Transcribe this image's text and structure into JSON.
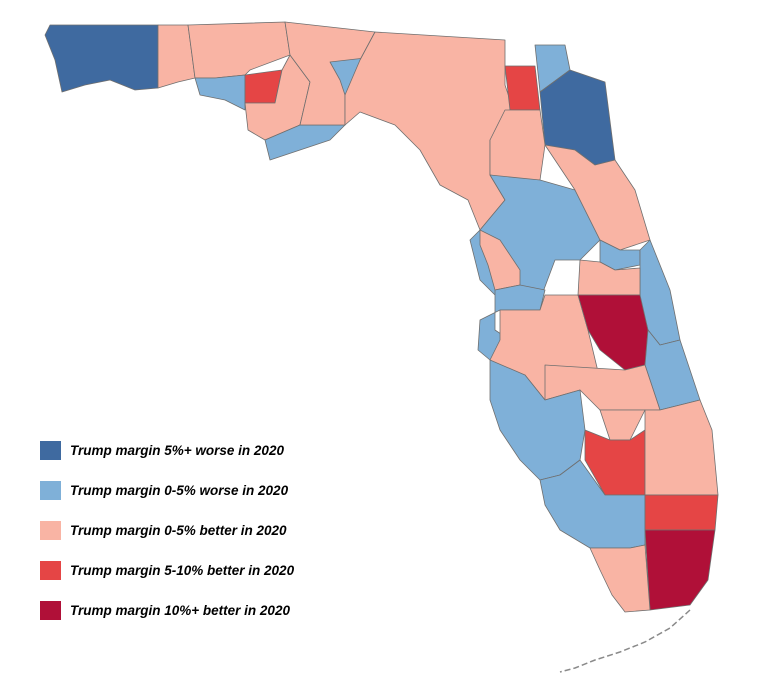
{
  "legend": [
    {
      "key": "worse5",
      "label": "Trump margin 5%+ worse in 2020",
      "color": "#3f6aa0"
    },
    {
      "key": "worse0",
      "label": "Trump margin 0-5% worse in 2020",
      "color": "#7fb0d8"
    },
    {
      "key": "better0",
      "label": "Trump margin 0-5% better in 2020",
      "color": "#f9b4a4"
    },
    {
      "key": "better5",
      "label": "Trump margin 5-10% better in 2020",
      "color": "#e54545"
    },
    {
      "key": "better10",
      "label": "Trump margin 10%+ better in 2020",
      "color": "#b01038"
    }
  ],
  "regions": [
    {
      "id": "escambia-okaloosa-walton",
      "category": "worse5"
    },
    {
      "id": "holmes-washington",
      "category": "better0"
    },
    {
      "id": "jackson-panhandle",
      "category": "better0"
    },
    {
      "id": "bay",
      "category": "worse0"
    },
    {
      "id": "calhoun",
      "category": "better5"
    },
    {
      "id": "gulf-liberty",
      "category": "better0"
    },
    {
      "id": "franklin",
      "category": "worse0"
    },
    {
      "id": "gadsden-leon-wakulla",
      "category": "better0"
    },
    {
      "id": "jefferson",
      "category": "worse0"
    },
    {
      "id": "big-bend",
      "category": "better0"
    },
    {
      "id": "baker",
      "category": "better5"
    },
    {
      "id": "nassau",
      "category": "worse0"
    },
    {
      "id": "duval-clay-stjohns",
      "category": "worse5"
    },
    {
      "id": "north-central",
      "category": "better0"
    },
    {
      "id": "alachua-marion",
      "category": "worse0"
    },
    {
      "id": "putnam-flagler-volusia",
      "category": "better0"
    },
    {
      "id": "citrus-hernando-pasco",
      "category": "better0"
    },
    {
      "id": "orange-seminole",
      "category": "worse0"
    },
    {
      "id": "brevard-indian-river",
      "category": "worse0"
    },
    {
      "id": "osceola",
      "category": "better0"
    },
    {
      "id": "pinellas-hillsborough",
      "category": "worse0"
    },
    {
      "id": "manatee-polk",
      "category": "better0"
    },
    {
      "id": "okeechobee",
      "category": "better10"
    },
    {
      "id": "stlucie-martin",
      "category": "worse0"
    },
    {
      "id": "highlands-desoto",
      "category": "better0"
    },
    {
      "id": "glades",
      "category": "better0"
    },
    {
      "id": "sarasota-charlotte-lee",
      "category": "worse0"
    },
    {
      "id": "hendry",
      "category": "better5"
    },
    {
      "id": "collier",
      "category": "worse0"
    },
    {
      "id": "palm-beach",
      "category": "better0"
    },
    {
      "id": "broward",
      "category": "better5"
    },
    {
      "id": "miami-dade",
      "category": "better10"
    },
    {
      "id": "monroe-mainland",
      "category": "better0"
    }
  ]
}
